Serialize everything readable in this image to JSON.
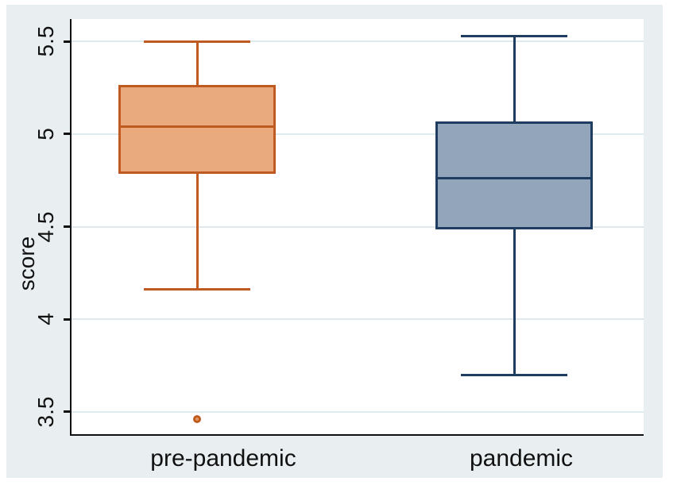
{
  "figure": {
    "background": "#ffffff",
    "region_background": "#e9eff1",
    "plot_background": "#ffffff",
    "axis_color": "#111111",
    "grid_color": "#dfeaed",
    "text_color": "#111111"
  },
  "chart_data": {
    "type": "boxplot",
    "title": "",
    "xlabel": "",
    "ylabel": "score",
    "ylim": [
      3.38,
      5.62
    ],
    "grid": true,
    "yticks": [
      3.5,
      4,
      4.5,
      5,
      5.5
    ],
    "ytick_labels": [
      "3.5",
      "4",
      "4.5",
      "5",
      "5.5"
    ],
    "categories": [
      "pre-pandemic",
      "pandemic"
    ],
    "series": [
      {
        "name": "pre-pandemic",
        "whisker_low": 4.16,
        "q1": 4.79,
        "median": 5.04,
        "q3": 5.26,
        "whisker_high": 5.5,
        "outliers": [
          3.46
        ],
        "fill": "#e9ab7e",
        "stroke": "#bf5b20",
        "outlier_fill": "#e8985e"
      },
      {
        "name": "pandemic",
        "whisker_low": 3.7,
        "q1": 4.49,
        "median": 4.76,
        "q3": 5.06,
        "whisker_high": 5.53,
        "outliers": [],
        "fill": "#93a5bb",
        "stroke": "#1f3c61",
        "outlier_fill": "#93a5bb"
      }
    ]
  }
}
